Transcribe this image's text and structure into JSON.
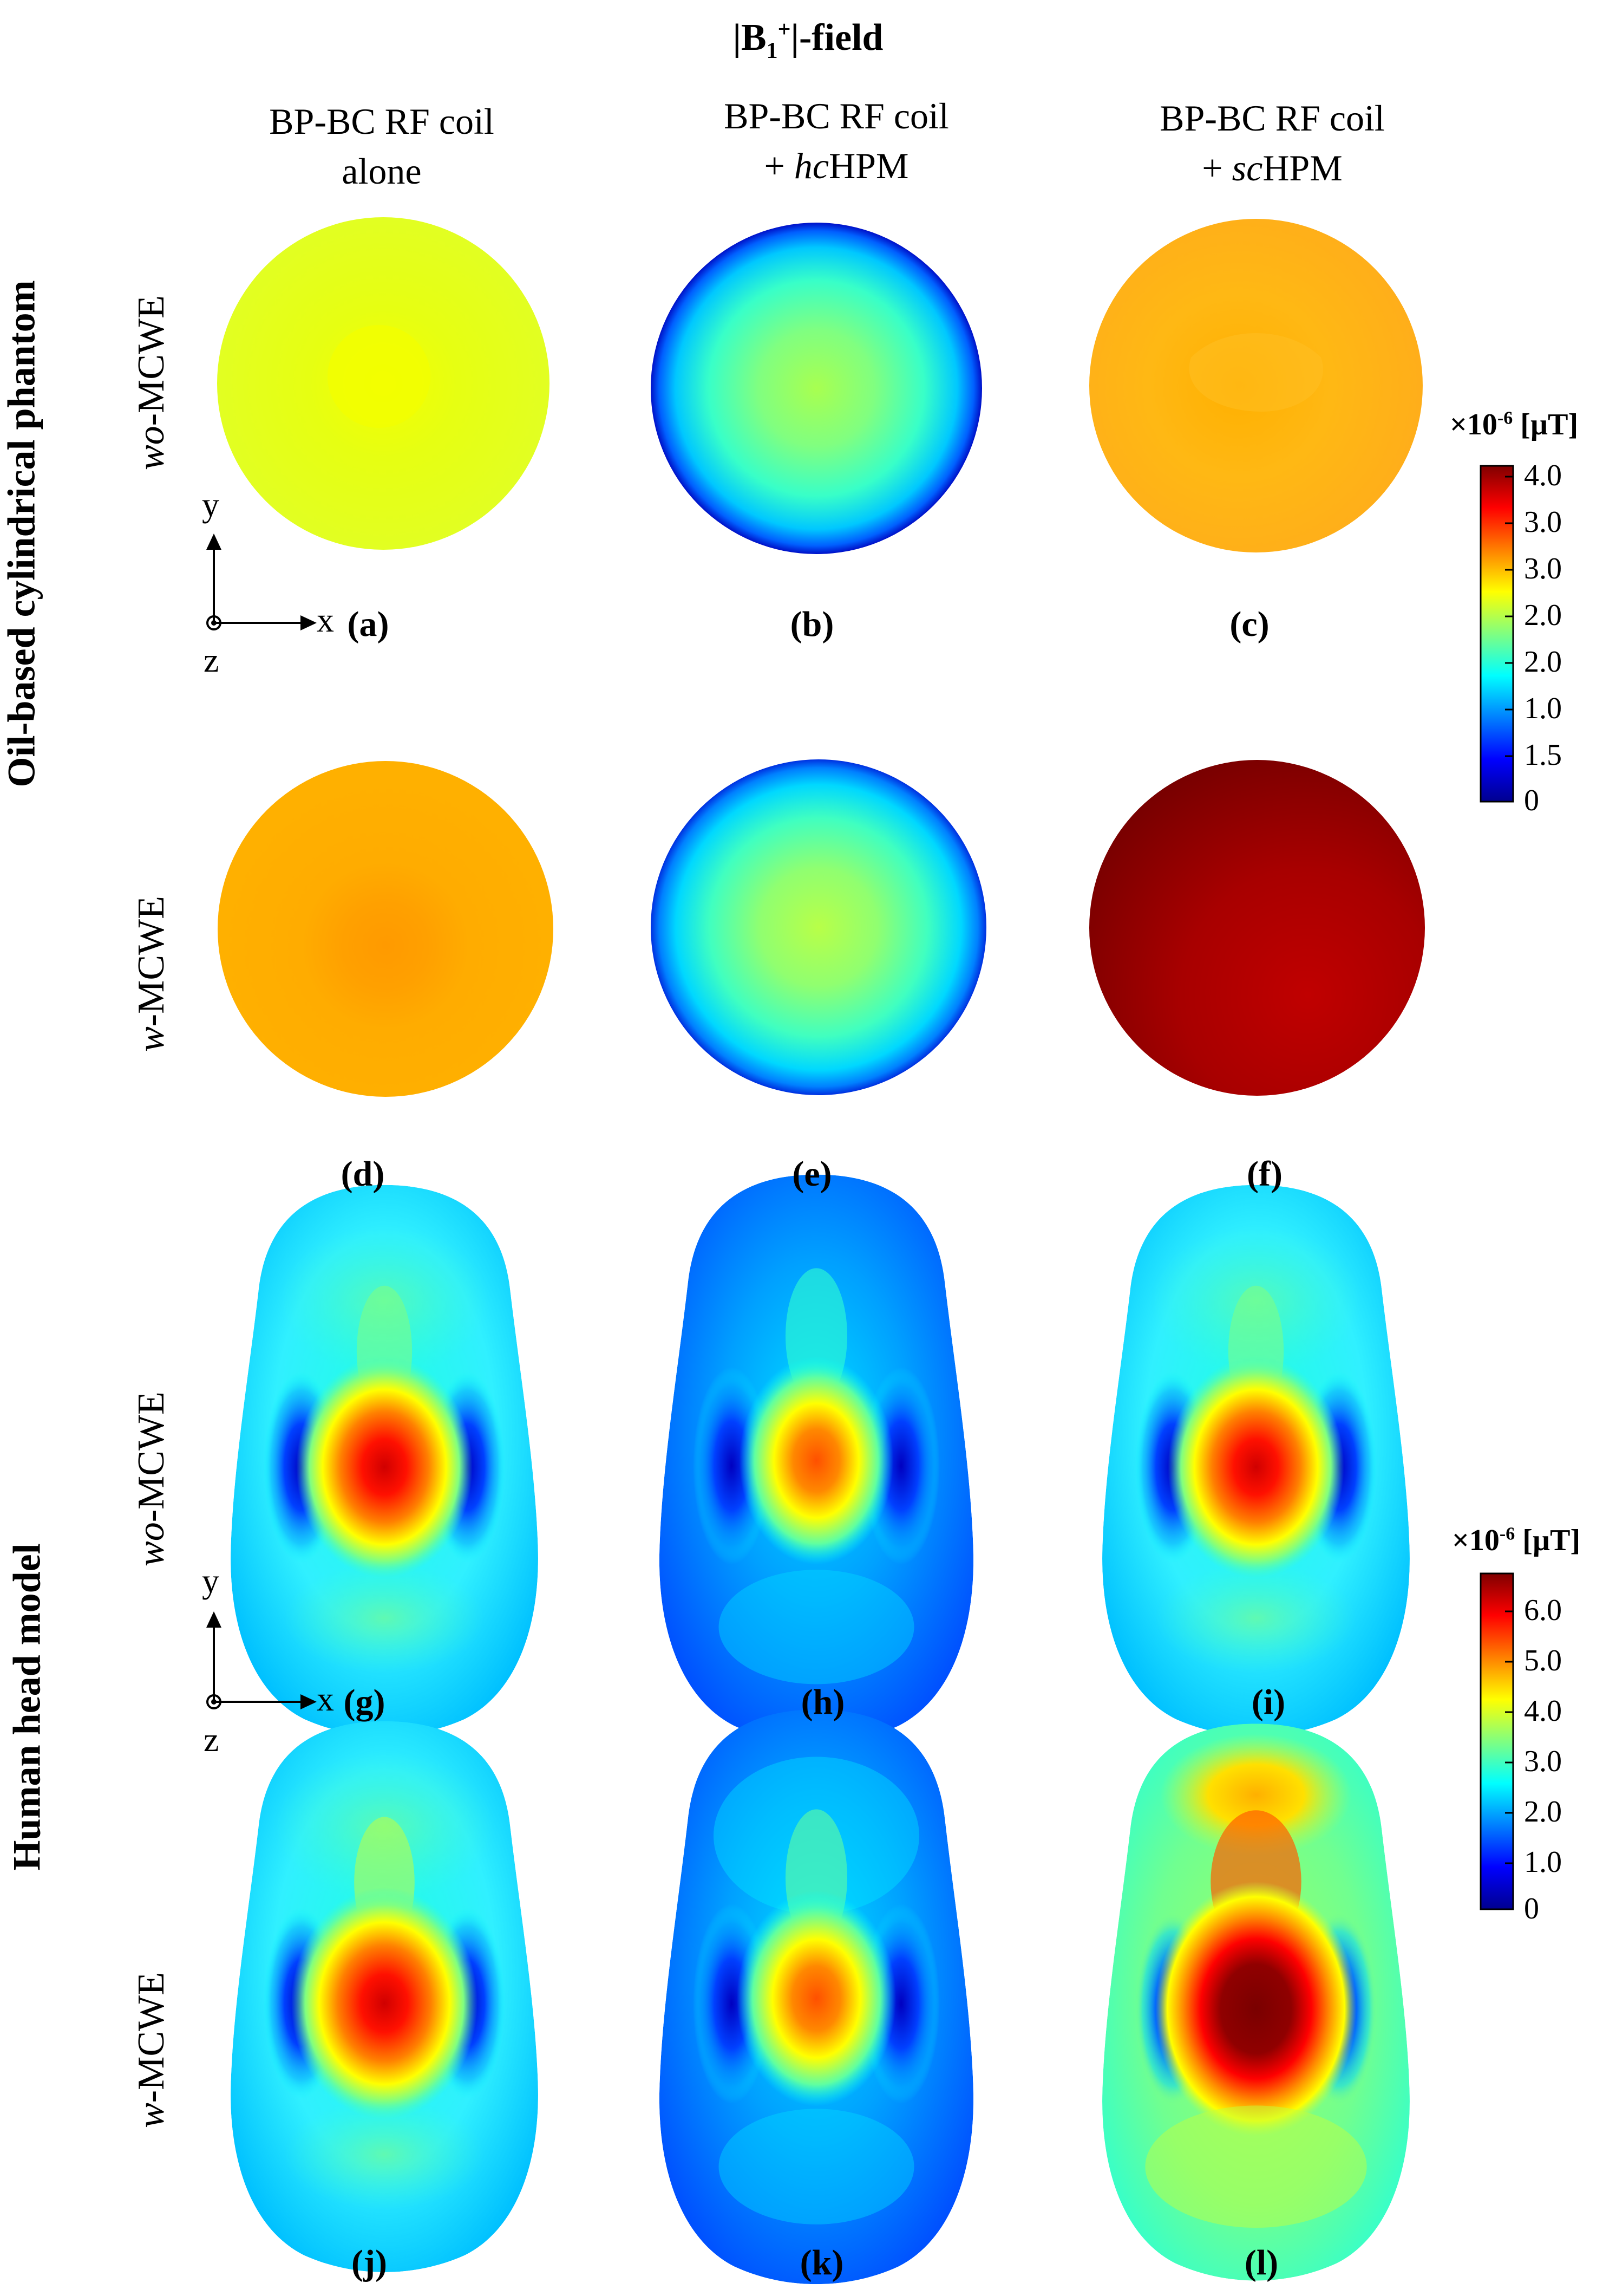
{
  "title": {
    "main": "|B",
    "sub": "1",
    "sup": "+",
    "rest": "|-field"
  },
  "columns": [
    {
      "line1": "BP-BC RF coil",
      "line2_prefix": "",
      "line2_ital": "",
      "line2_main": "alone"
    },
    {
      "line1": "BP-BC RF coil",
      "line2_prefix": "+ ",
      "line2_ital": "hc",
      "line2_main": "HPM"
    },
    {
      "line1": "BP-BC RF coil",
      "line2_prefix": "+ ",
      "line2_ital": "sc",
      "line2_main": "HPM"
    }
  ],
  "groups": {
    "phantom": "Oil-based cylindrical phantom",
    "head": "Human head model"
  },
  "rows": {
    "r1": {
      "ital": "wo",
      "main": "-MCWE"
    },
    "r2": {
      "ital": "w",
      "main": "-MCWE"
    },
    "r3": {
      "ital": "wo",
      "main": "-MCWE"
    },
    "r4": {
      "ital": "w",
      "main": "-MCWE"
    }
  },
  "panels": {
    "a": "(a)",
    "b": "(b)",
    "c": "(c)",
    "d": "(d)",
    "e": "(e)",
    "f": "(f)",
    "g": "(g)",
    "h": "(h)",
    "i": "(i)",
    "j": "(j)",
    "k": "(k)",
    "l": "(l)"
  },
  "axes": {
    "x": "x",
    "y": "y",
    "z": "z"
  },
  "colorbar1": {
    "prefix": "×10",
    "exp": "-6",
    "unit": " [µT]",
    "ticks": [
      "4.0",
      "3.0",
      "3.0",
      "2.0",
      "2.0",
      "1.0",
      "1.5",
      "0"
    ]
  },
  "colorbar2": {
    "prefix": "×10",
    "exp": "-6",
    "unit": " [µT]",
    "ticks": [
      "6.0",
      "5.0",
      "4.0",
      "3.0",
      "2.0",
      "1.0",
      "0"
    ]
  },
  "colors": {
    "jet_dark_red": "#800000",
    "jet_red": "#ff0000",
    "jet_orange": "#ffa500",
    "jet_yellow": "#ffff00",
    "jet_green": "#80ff80",
    "jet_cyan": "#00ffff",
    "jet_blue": "#0080ff",
    "jet_dark_blue": "#00008f"
  }
}
